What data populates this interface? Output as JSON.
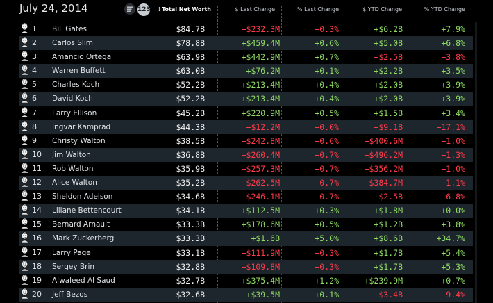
{
  "date": "July 24, 2014",
  "view_toggle": {
    "numbers_label": "123"
  },
  "columns": {
    "net": "Total Net Worth",
    "last_change": "$ Last Change",
    "pct_last_change": "% Last Change",
    "ytd_change": "$ YTD Change",
    "pct_ytd_change": "% YTD Change"
  },
  "sort_icon": "sort-indicator-icon",
  "colors": {
    "positive": "#8fdc63",
    "negative": "#ff3b4a",
    "alt_row": "#1e262d"
  },
  "rows": [
    {
      "rank": "1",
      "name": "Bill Gates",
      "net": "$84.7B",
      "c1": "−$232.3M",
      "c2": "−0.3%",
      "c3": "+$6.2B",
      "c4": "+7.9%"
    },
    {
      "rank": "2",
      "name": "Carlos Slim",
      "net": "$78.8B",
      "c1": "+$459.4M",
      "c2": "+0.6%",
      "c3": "+$5.0B",
      "c4": "+6.8%"
    },
    {
      "rank": "3",
      "name": "Amancio Ortega",
      "net": "$63.9B",
      "c1": "+$442.9M",
      "c2": "+0.7%",
      "c3": "−$2.5B",
      "c4": "−3.8%"
    },
    {
      "rank": "4",
      "name": "Warren Buffett",
      "net": "$63.0B",
      "c1": "+$76.2M",
      "c2": "+0.1%",
      "c3": "+$2.2B",
      "c4": "+3.5%"
    },
    {
      "rank": "5",
      "name": "Charles Koch",
      "net": "$52.2B",
      "c1": "+$213.4M",
      "c2": "+0.4%",
      "c3": "+$2.0B",
      "c4": "+3.9%"
    },
    {
      "rank": "6",
      "name": "David Koch",
      "net": "$52.2B",
      "c1": "+$213.4M",
      "c2": "+0.4%",
      "c3": "+$2.0B",
      "c4": "+3.9%"
    },
    {
      "rank": "7",
      "name": "Larry Ellison",
      "net": "$45.2B",
      "c1": "+$220.9M",
      "c2": "+0.5%",
      "c3": "+$1.5B",
      "c4": "+3.4%"
    },
    {
      "rank": "8",
      "name": "Ingvar Kamprad",
      "net": "$44.3B",
      "c1": "−$12.2M",
      "c2": "−0.0%",
      "c3": "−$9.1B",
      "c4": "−17.1%"
    },
    {
      "rank": "9",
      "name": "Christy Walton",
      "net": "$38.5B",
      "c1": "−$242.8M",
      "c2": "−0.6%",
      "c3": "−$400.6M",
      "c4": "−1.0%"
    },
    {
      "rank": "10",
      "name": "Jim Walton",
      "net": "$36.8B",
      "c1": "−$260.4M",
      "c2": "−0.7%",
      "c3": "−$496.2M",
      "c4": "−1.3%"
    },
    {
      "rank": "11",
      "name": "Rob Walton",
      "net": "$35.9B",
      "c1": "−$257.3M",
      "c2": "−0.7%",
      "c3": "−$356.2M",
      "c4": "−1.0%"
    },
    {
      "rank": "12",
      "name": "Alice Walton",
      "net": "$35.2B",
      "c1": "−$262.5M",
      "c2": "−0.7%",
      "c3": "−$384.7M",
      "c4": "−1.1%"
    },
    {
      "rank": "13",
      "name": "Sheldon Adelson",
      "net": "$34.6B",
      "c1": "−$246.1M",
      "c2": "−0.7%",
      "c3": "−$2.5B",
      "c4": "−6.8%"
    },
    {
      "rank": "14",
      "name": "Liliane Bettencourt",
      "net": "$34.1B",
      "c1": "+$112.5M",
      "c2": "+0.3%",
      "c3": "+$1.8M",
      "c4": "+0.0%"
    },
    {
      "rank": "15",
      "name": "Bernard Arnault",
      "net": "$33.3B",
      "c1": "+$178.6M",
      "c2": "+0.5%",
      "c3": "+$1.2B",
      "c4": "+3.8%"
    },
    {
      "rank": "16",
      "name": "Mark Zuckerberg",
      "net": "$33.3B",
      "c1": "+$1.6B",
      "c2": "+5.0%",
      "c3": "+$8.6B",
      "c4": "+34.7%"
    },
    {
      "rank": "17",
      "name": "Larry Page",
      "net": "$33.1B",
      "c1": "−$111.9M",
      "c2": "−0.3%",
      "c3": "+$1.7B",
      "c4": "+5.4%"
    },
    {
      "rank": "18",
      "name": "Sergey Brin",
      "net": "$32.8B",
      "c1": "−$109.8M",
      "c2": "−0.3%",
      "c3": "+$1.7B",
      "c4": "+5.3%"
    },
    {
      "rank": "19",
      "name": "Alwaleed Al Saud",
      "net": "$32.7B",
      "c1": "+$375.4M",
      "c2": "+1.2%",
      "c3": "+$239.9M",
      "c4": "+0.7%"
    },
    {
      "rank": "20",
      "name": "Jeff Bezos",
      "net": "$32.6B",
      "c1": "+$39.5M",
      "c2": "+0.1%",
      "c3": "−$3.4B",
      "c4": "−9.4%"
    }
  ]
}
